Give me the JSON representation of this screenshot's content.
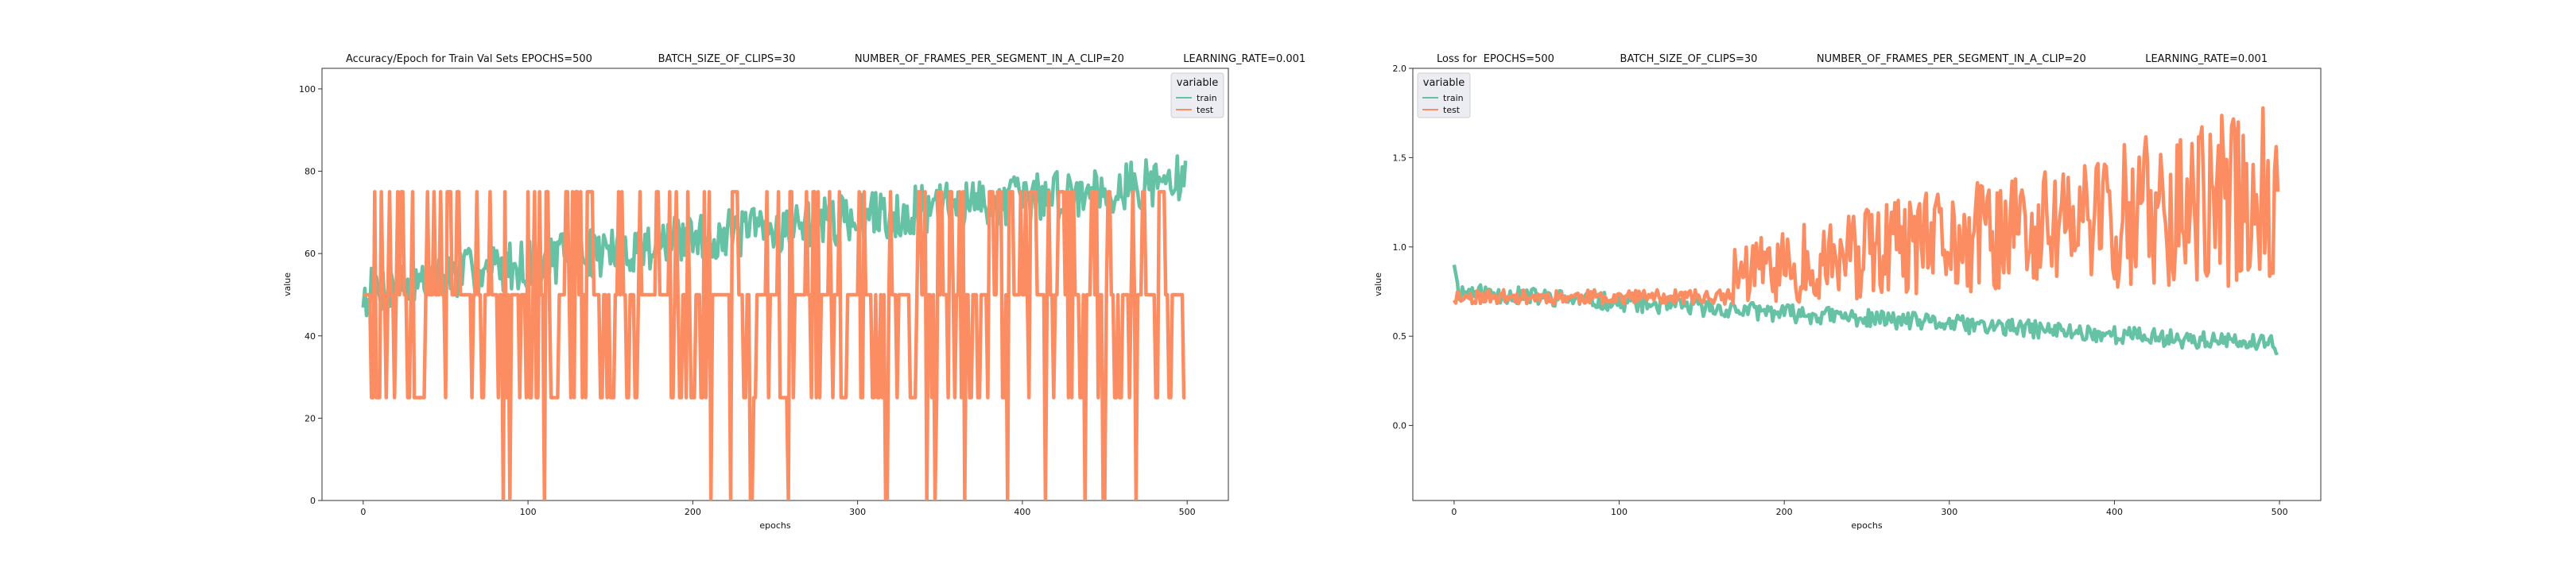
{
  "colors": {
    "train": "#66c2a5",
    "test": "#fc8d62",
    "legend_bg": "#eaeaf2",
    "legend_edge": "#cccccc"
  },
  "chart_data": [
    {
      "type": "line",
      "title": "Accuracy/Epoch for Train Val Sets EPOCHS=500                    BATCH_SIZE_OF_CLIPS=30                  NUMBER_OF_FRAMES_PER_SEGMENT_IN_A_CLIP=20                  LEARNING_RATE=0.001",
      "xlabel": "epochs",
      "ylabel": "value",
      "xlim": [
        -25,
        525
      ],
      "ylim": [
        0,
        105
      ],
      "xticks": [
        0,
        100,
        200,
        300,
        400,
        500
      ],
      "yticks": [
        0,
        20,
        40,
        60,
        80,
        100
      ],
      "legend": {
        "title": "variable",
        "position": "top-right",
        "entries": [
          "train",
          "test"
        ]
      },
      "generator": {
        "n": 500,
        "train_start": 50,
        "train_end": 78,
        "train_noise": 6,
        "test_levels": [
          50,
          50,
          50,
          25,
          50,
          75,
          0,
          25,
          50,
          50,
          75,
          25,
          50,
          50
        ],
        "seed": 7
      }
    },
    {
      "type": "line",
      "title": "Loss for  EPOCHS=500                    BATCH_SIZE_OF_CLIPS=30                  NUMBER_OF_FRAMES_PER_SEGMENT_IN_A_CLIP=20                  LEARNING_RATE=0.001",
      "xlabel": "epochs",
      "ylabel": "value",
      "xlim": [
        -25,
        525
      ],
      "ylim": [
        -0.42,
        2.0
      ],
      "xticks": [
        0,
        100,
        200,
        300,
        400,
        500
      ],
      "yticks": [
        0.0,
        0.5,
        1.0,
        1.5,
        2.0
      ],
      "yticklabels": [
        "0.0",
        "0.5",
        "1.0",
        "1.5",
        "2.0"
      ],
      "legend": {
        "title": "variable",
        "position": "top-left",
        "entries": [
          "train",
          "test"
        ]
      },
      "generator": {
        "n": 500,
        "train_start": 0.75,
        "train_end": 0.45,
        "train_noise": 0.05,
        "test_start": 0.72,
        "test_mid": 0.85,
        "test_end": 1.3,
        "test_noise": 0.35,
        "seed": 11
      }
    }
  ]
}
